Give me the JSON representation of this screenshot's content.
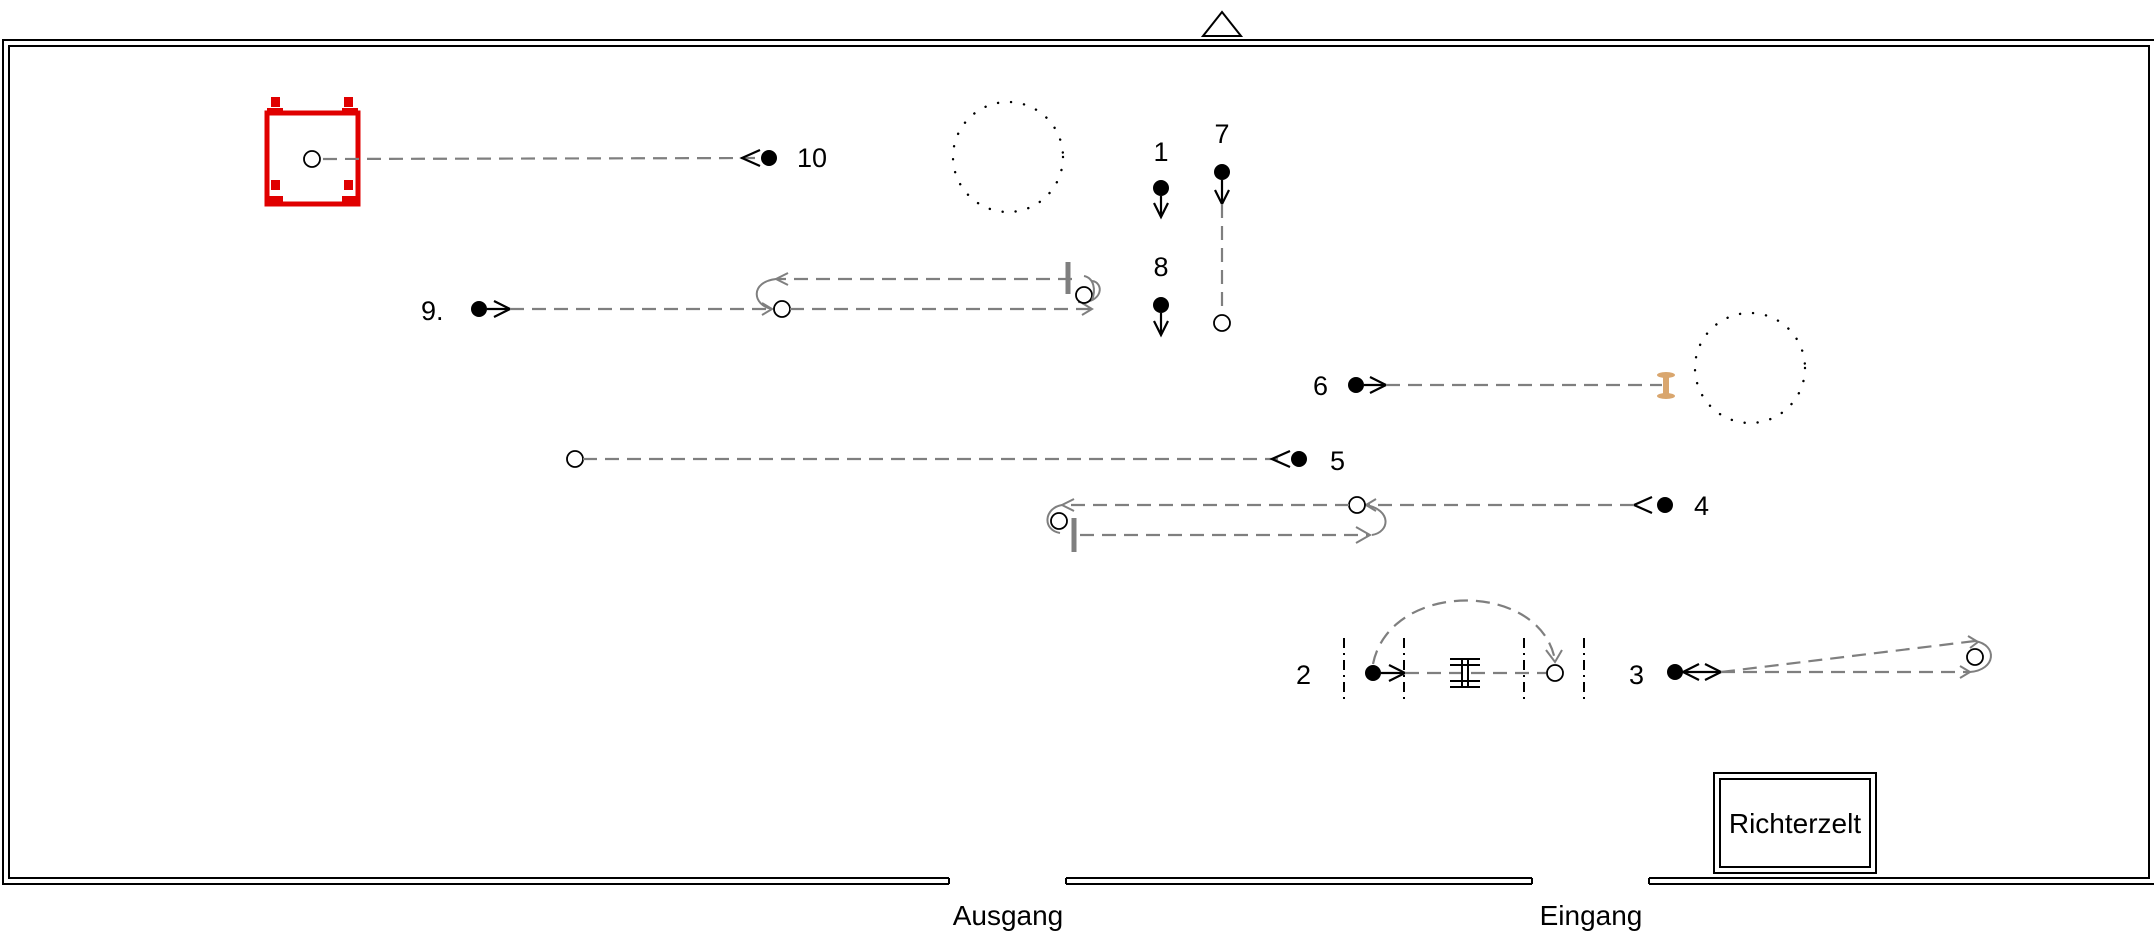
{
  "course": {
    "stations": [
      {
        "id": 1,
        "label": "1"
      },
      {
        "id": 2,
        "label": "2"
      },
      {
        "id": 3,
        "label": "3"
      },
      {
        "id": 4,
        "label": "4"
      },
      {
        "id": 5,
        "label": "5"
      },
      {
        "id": 6,
        "label": "6"
      },
      {
        "id": 7,
        "label": "7"
      },
      {
        "id": 8,
        "label": "8"
      },
      {
        "id": 9,
        "label": "9."
      },
      {
        "id": 10,
        "label": "10"
      }
    ],
    "exit_label": "Ausgang",
    "entrance_label": "Eingang",
    "judge_tent_label": "Richterzelt",
    "colors": {
      "box": "#e00000",
      "path": "#7f7f7f",
      "barrel": "#d9a66e",
      "ink": "#000000"
    }
  }
}
